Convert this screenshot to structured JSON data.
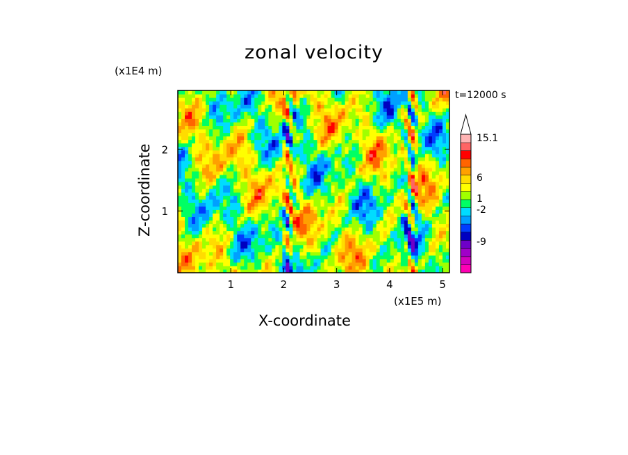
{
  "chart_data": {
    "type": "heatmap",
    "title": "zonal velocity",
    "xlabel": "X-coordinate",
    "ylabel": "Z-coordinate",
    "x_unit": "(x1E5 m)",
    "z_unit": "(x1E4 m)",
    "time_label": "t=12000 s",
    "xlim": [
      0,
      5.13
    ],
    "ylim": [
      0,
      2.95
    ],
    "x_ticks": [
      "1",
      "2",
      "3",
      "4",
      "5"
    ],
    "x_tick_values": [
      1,
      2,
      3,
      4,
      5
    ],
    "y_ticks": [
      "1",
      "2"
    ],
    "y_tick_values": [
      1,
      2
    ],
    "colorbar": {
      "labels": [
        "15.1",
        "6",
        "1",
        "-2",
        "-9"
      ],
      "label_values": [
        15.1,
        6,
        1,
        -2,
        -9
      ],
      "colors": [
        "#ff00b4",
        "#d200be",
        "#a000c8",
        "#6e00c8",
        "#0000c0",
        "#003cff",
        "#00a0ff",
        "#00dcff",
        "#00ff64",
        "#a0ff00",
        "#ffff00",
        "#ffdc00",
        "#ffa000",
        "#ff6400",
        "#ff0000",
        "#ff6464",
        "#ffb4b4"
      ],
      "extend_max": true
    }
  }
}
